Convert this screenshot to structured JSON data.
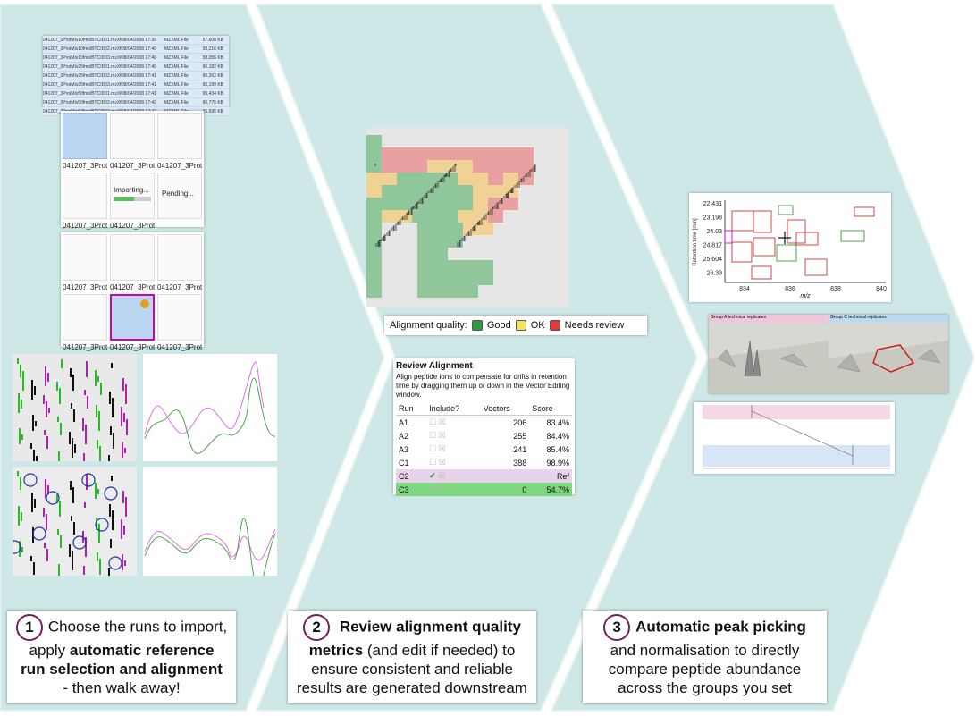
{
  "colors": {
    "background": "#cde8e6",
    "chevron": "#cde8e6",
    "accent": "#7a1f5c",
    "good": "#2e9b3a",
    "ok": "#f2e35a",
    "needs_review": "#e03a3a"
  },
  "step1": {
    "number": "1",
    "caption_line1": "Choose the runs to import,",
    "caption_line2a": "apply ",
    "caption_line2b": "automatic reference",
    "caption_line3": "run  selection and alignment",
    "caption_line4": "-  then walk away!",
    "files": [
      {
        "name": "041207_3ProtMix10fmolBTCID01.mzXML",
        "date": "08/04/2008 17:39",
        "type": "MZXML File",
        "size": "57,600 KB"
      },
      {
        "name": "041207_3ProtMix10fmolBTCID02.mzXML",
        "date": "08/04/2008 17:40",
        "type": "MZXML File",
        "size": "58,216 KB"
      },
      {
        "name": "041207_3ProtMix10fmolBTCID03.mzXML",
        "date": "08/04/2008 17:40",
        "type": "MZXML File",
        "size": "58,055 KB"
      },
      {
        "name": "041207_3ProtMix25fmolBTCID01.mzXML",
        "date": "08/04/2008 17:40",
        "type": "MZXML File",
        "size": "66,182 KB"
      },
      {
        "name": "041207_3ProtMix25fmolBTCID02.mzXML",
        "date": "08/04/2008 17:41",
        "type": "MZXML File",
        "size": "66,262 KB"
      },
      {
        "name": "041207_3ProtMix25fmolBTCID03.mzXML",
        "date": "08/04/2008 17:41",
        "type": "MZXML File",
        "size": "65,199 KB"
      },
      {
        "name": "041207_3ProtMix50fmolBTCID01.mzXML",
        "date": "08/04/2008 17:41",
        "type": "MZXML File",
        "size": "65,434 KB"
      },
      {
        "name": "041207_3ProtMix50fmolBTCID02.mzXML",
        "date": "08/04/2008 17:42",
        "type": "MZXML File",
        "size": "66,775 KB"
      },
      {
        "name": "041207_3ProtMix50fmolBTCID03.mzXML",
        "date": "08/04/2008 17:42",
        "type": "MZXML File",
        "size": "65,695 KB"
      }
    ],
    "thumb_label": "041207_3Prot...",
    "importing_label": "Importing...",
    "pending_label": "Pending..."
  },
  "step2": {
    "number": "2",
    "caption_bold1": "Review alignment quality",
    "caption_bold2": "metrics",
    "caption_rest2": " (and edit if needed) to",
    "caption_line3": "ensure consistent and reliable",
    "caption_line4": "results are generated downstream",
    "legend": {
      "label": "Alignment quality:",
      "good": "Good",
      "ok": "OK",
      "needs_review": "Needs review"
    },
    "review": {
      "title": "Review Alignment",
      "description": "Align peptide ions to compensate for drifts in retention time by dragging them up or down in the Vector Editing window.",
      "headers": [
        "Run",
        "Include?",
        "Vectors",
        "Score"
      ],
      "rows": [
        {
          "run": "A1",
          "vectors": "206",
          "score": "83.4%"
        },
        {
          "run": "A2",
          "vectors": "255",
          "score": "84.4%"
        },
        {
          "run": "A3",
          "vectors": "241",
          "score": "85.4%"
        },
        {
          "run": "C1",
          "vectors": "388",
          "score": "98.9%"
        },
        {
          "run": "C2",
          "vectors": "",
          "score": "Ref"
        },
        {
          "run": "C3",
          "vectors": "0",
          "score": "54.7%"
        }
      ]
    }
  },
  "step3": {
    "number": "3",
    "caption_bold": "Automatic peak picking",
    "caption_line2": "and normalisation to directly",
    "caption_line3": "compare peptide abundance",
    "caption_line4": "across the groups you set",
    "plot": {
      "ylabel": "Retention time [min]",
      "xlabel": "m/z",
      "yticks": [
        "22.431",
        "23.198",
        "24.03",
        "24.817",
        "25.604",
        "26.39"
      ],
      "xticks": [
        "834",
        "836",
        "838",
        "840"
      ]
    },
    "group_a_label": "Group A technical replicates",
    "group_c_label": "Group C technical replicates"
  }
}
